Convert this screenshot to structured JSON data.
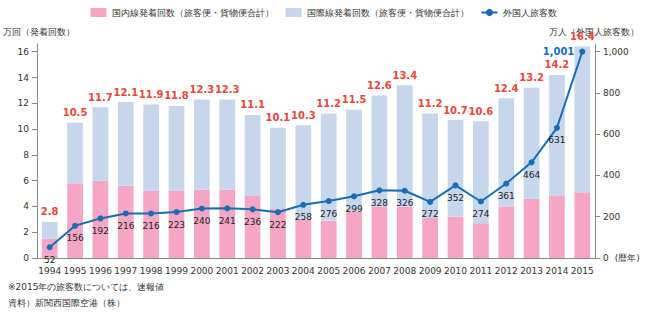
{
  "chart_data": {
    "type": "bar",
    "stacked": true,
    "legend": "top",
    "categories": [
      "1994",
      "1995",
      "1996",
      "1997",
      "1998",
      "1999",
      "2000",
      "2001",
      "2002",
      "2003",
      "2004",
      "2005",
      "2006",
      "2007",
      "2008",
      "2009",
      "2010",
      "2011",
      "2012",
      "2013",
      "2014",
      "2015"
    ],
    "x_label": "(暦年)",
    "y_label": "万回（発着回数）",
    "y2_label": "万人（外国人旅客数）",
    "ylim": [
      0,
      16.6
    ],
    "yticks": [
      0,
      2,
      4,
      6,
      8,
      10,
      12,
      14,
      16
    ],
    "y2lim": [
      0,
      1037.5
    ],
    "y2ticks": [
      0,
      200,
      400,
      600,
      {
        "value": 800,
        "label": "800"
      },
      {
        "value": 1000,
        "label": "1,000"
      }
    ],
    "totals": [
      2.8,
      10.5,
      11.7,
      12.1,
      11.9,
      11.8,
      12.3,
      12.3,
      11.1,
      10.1,
      10.3,
      11.2,
      11.5,
      12.6,
      13.4,
      11.2,
      10.7,
      10.6,
      12.4,
      13.2,
      14.2,
      16.4
    ],
    "totals_color": "#e8473d",
    "series": [
      {
        "name": "国内線発着回数（旅客便・貨物便合計）",
        "type": "bar",
        "color": "#f4a6c4",
        "values": [
          1.5,
          5.8,
          6.0,
          5.6,
          5.2,
          5.2,
          5.3,
          5.3,
          4.8,
          3.8,
          3.0,
          2.9,
          3.6,
          4.0,
          4.0,
          3.1,
          3.2,
          2.7,
          4.0,
          4.6,
          4.8,
          5.1
        ]
      },
      {
        "name": "国際線発着回数（旅客便・貨物便合計）",
        "type": "bar",
        "color": "#c6d6ec",
        "values": [
          1.3,
          4.7,
          5.7,
          6.5,
          6.7,
          6.6,
          7.0,
          7.0,
          6.3,
          6.3,
          7.3,
          8.3,
          7.9,
          8.6,
          9.4,
          8.1,
          7.5,
          7.9,
          8.4,
          8.6,
          9.4,
          11.3
        ]
      },
      {
        "name": "外国人旅客数",
        "type": "line",
        "axis": "y2",
        "color": "#1a6db3",
        "marker": "circle",
        "data_labels": true,
        "values": [
          52,
          156,
          192,
          216,
          216,
          223,
          240,
          241,
          236,
          222,
          258,
          276,
          299,
          328,
          326,
          272,
          352,
          274,
          361,
          464,
          631,
          1001
        ],
        "value_labels": [
          "52",
          "156",
          "192",
          "216",
          "216",
          "223",
          "240",
          "241",
          "236",
          "222",
          "258",
          "276",
          "299",
          "328",
          "326",
          "272",
          "352",
          "274",
          "361",
          "464",
          "631",
          "1,001"
        ]
      }
    ],
    "notes": [
      "※2015年の旅客数については、速報値",
      "資料）新関西国際空港（株）"
    ]
  }
}
